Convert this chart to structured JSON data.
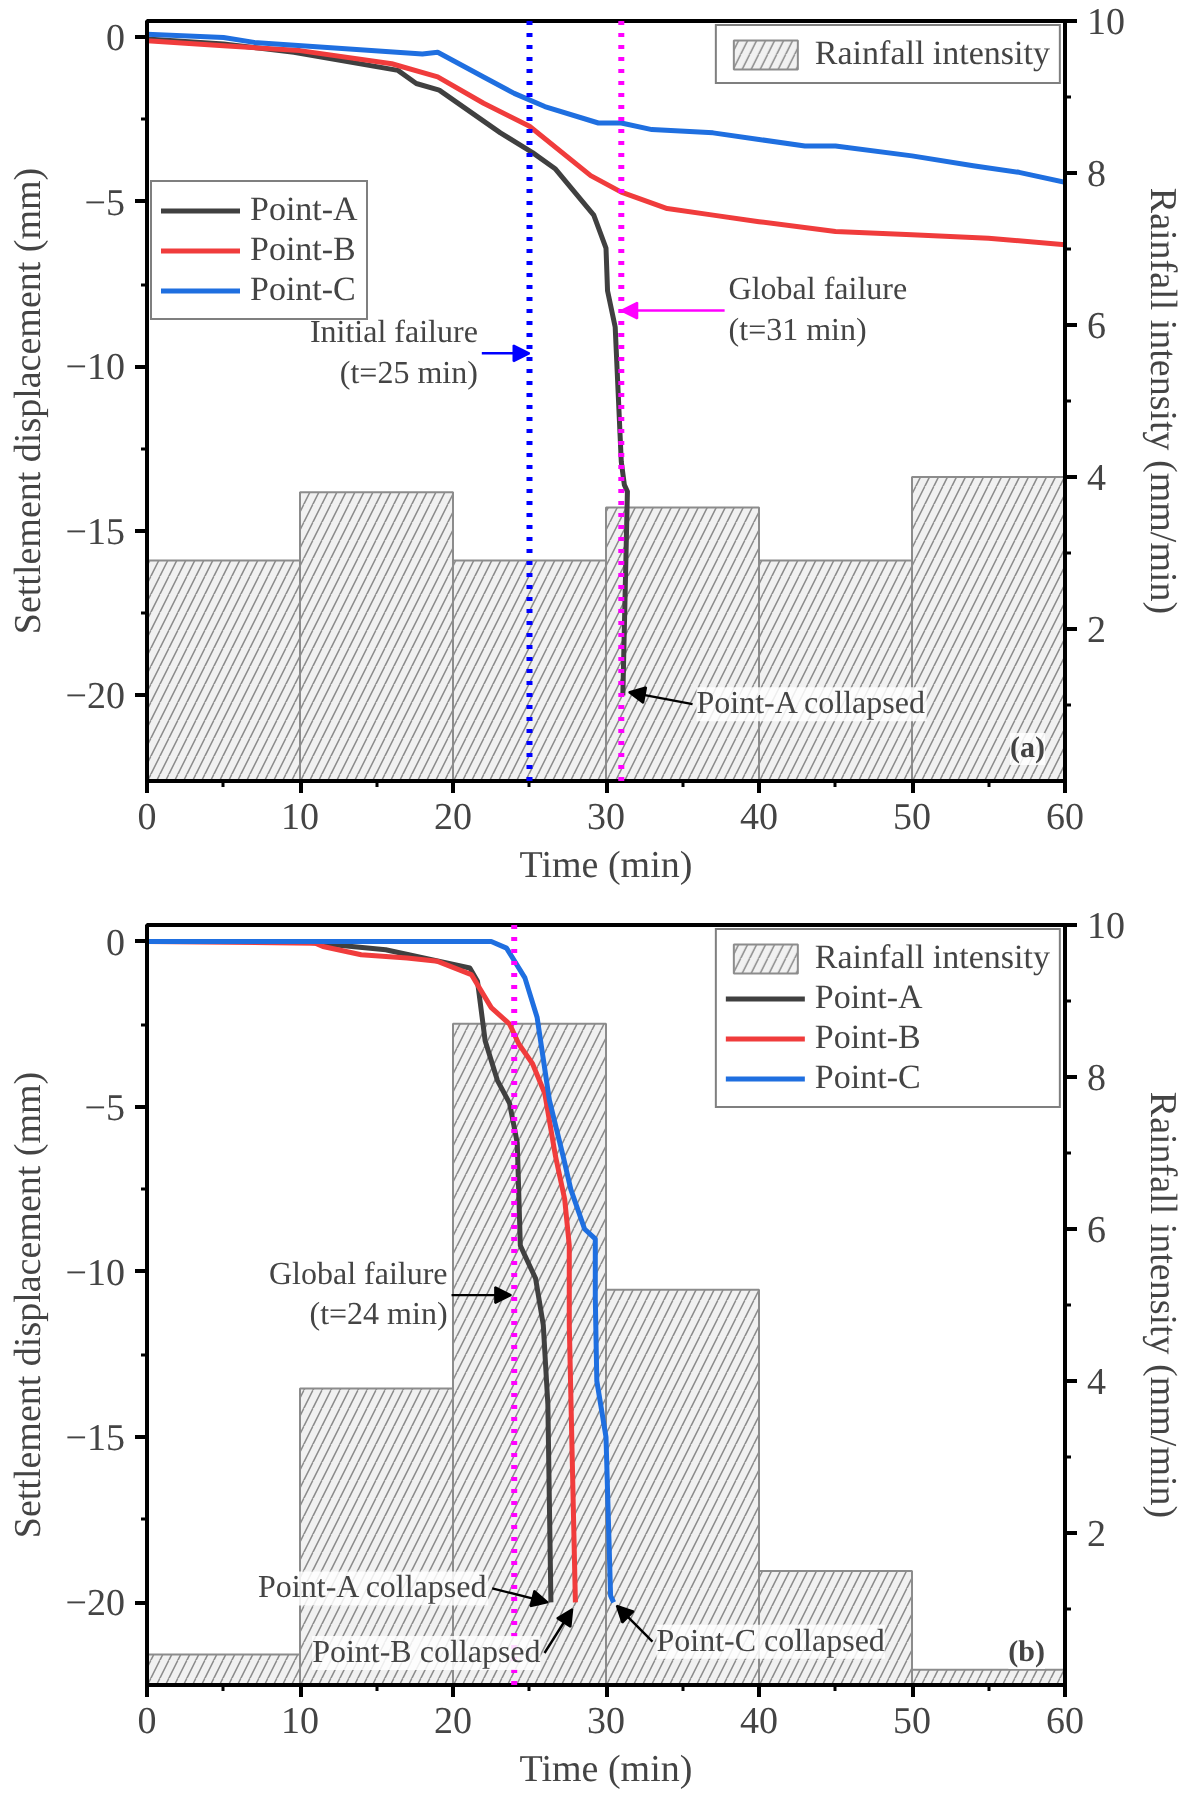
{
  "chart_data": [
    {
      "type": "line",
      "xlabel": "Time (min)",
      "ylabel": "Settlement displacement (mm)",
      "y2label": "Rainfall intensity (mm/min)",
      "xlim": [
        0,
        60
      ],
      "xticks": [
        0,
        10,
        20,
        30,
        40,
        50,
        60
      ],
      "ylim": [
        -22.6,
        0.5
      ],
      "yticks": [
        0,
        {
          "value": -5,
          "label": "−5"
        },
        {
          "value": -10,
          "label": "−10"
        },
        {
          "value": -15,
          "label": "−15"
        },
        {
          "value": -20,
          "label": "−20"
        }
      ],
      "y2lim": [
        0,
        10
      ],
      "y2ticks": [
        2,
        4,
        6,
        8,
        10
      ],
      "legend": "top left",
      "marker": "none",
      "line_style": "solid",
      "series": [
        {
          "name": "Rainfall intensity",
          "type": "bar",
          "axis": "y2",
          "color": "#8c8c8c",
          "x": [
            5,
            15,
            25,
            35,
            45,
            55
          ],
          "values": [
            2.9,
            3.8,
            2.9,
            3.6,
            2.9,
            4.0
          ]
        },
        {
          "name": "Point-A",
          "color": "#404040",
          "x": [
            0,
            5,
            9.6,
            16.4,
            17.6,
            19.1,
            23.1,
            25.2,
            26.7,
            29.2,
            30,
            30.1,
            30.6,
            31,
            31.2,
            31.4,
            31.1
          ],
          "values": [
            -0.05,
            -0.2,
            -0.45,
            -1.0,
            -1.4,
            -1.6,
            -2.9,
            -3.5,
            -4.0,
            -5.4,
            -6.4,
            -7.7,
            -8.8,
            -12.9,
            -13.6,
            -13.8,
            -20
          ]
        },
        {
          "name": "Point-B",
          "color": "#f03c3c",
          "x": [
            0,
            5,
            10,
            16,
            19,
            22,
            25,
            29,
            31,
            34,
            37,
            40,
            45,
            50,
            55,
            60
          ],
          "values": [
            -0.1,
            -0.25,
            -0.4,
            -0.8,
            -1.2,
            -2.0,
            -2.7,
            -4.2,
            -4.7,
            -5.2,
            -5.4,
            -5.6,
            -5.9,
            -6.0,
            -6.1,
            -6.3
          ]
        },
        {
          "name": "Point-C",
          "color": "#1f6fe0",
          "x": [
            0,
            5,
            7,
            18,
            19,
            20,
            22,
            24,
            26,
            29.5,
            31,
            33,
            37,
            40,
            43,
            45,
            50,
            54,
            57,
            60
          ],
          "values": [
            0.1,
            0,
            -0.15,
            -0.5,
            -0.45,
            -0.7,
            -1.2,
            -1.7,
            -2.1,
            -2.6,
            -2.6,
            -2.8,
            -2.9,
            -3.1,
            -3.3,
            -3.3,
            -3.6,
            -3.9,
            -4.1,
            -4.4
          ]
        }
      ],
      "ref_lines": [
        {
          "axis": "x",
          "value": 25,
          "color": "#0000ff",
          "line_style": "dotted"
        },
        {
          "axis": "x",
          "value": 31,
          "color": "#ff00ff",
          "line_style": "dotted"
        }
      ],
      "annotations": [
        {
          "text": "Initial failure\n(t=25 min)",
          "x": 25,
          "y": -9.6
        },
        {
          "text": "Global failure\n(t=31 min)",
          "x": 31,
          "y": -8.3
        },
        {
          "text": "Point-A collapsed",
          "x": 31.5,
          "y": -19.9
        },
        "(a)"
      ]
    },
    {
      "type": "line",
      "xlabel": "Time (min)",
      "ylabel": "Settlement displacement (mm)",
      "y2label": "Rainfall intensity (mm/min)",
      "xlim": [
        0,
        60
      ],
      "xticks": [
        0,
        10,
        20,
        30,
        40,
        50,
        60
      ],
      "ylim": [
        -22.5,
        0.5
      ],
      "yticks": [
        0,
        {
          "value": -5,
          "label": "−5"
        },
        {
          "value": -10,
          "label": "−10"
        },
        {
          "value": -15,
          "label": "−15"
        },
        {
          "value": -20,
          "label": "−20"
        }
      ],
      "y2lim": [
        0,
        10
      ],
      "y2ticks": [
        2,
        4,
        6,
        8,
        10
      ],
      "legend": "top right",
      "marker": "none",
      "line_style": "solid",
      "series": [
        {
          "name": "Rainfall intensity",
          "type": "bar",
          "axis": "y2",
          "color": "#8c8c8c",
          "x": [
            5,
            15,
            25,
            35,
            45,
            55
          ],
          "values": [
            0.4,
            3.9,
            8.7,
            5.2,
            1.5,
            0.2
          ]
        },
        {
          "name": "Point-A",
          "color": "#404040",
          "x": [
            0,
            10,
            15.6,
            21.1,
            21.6,
            22.1,
            22.9,
            23.7,
            24.2,
            24.4,
            24.7,
            25.4,
            25.9,
            26.2,
            26.4
          ],
          "values": [
            0,
            0,
            -0.25,
            -0.8,
            -1.2,
            -3.0,
            -4.2,
            -4.9,
            -6.1,
            -9.2,
            -9.5,
            -10.2,
            -11.6,
            -14.0,
            -20
          ]
        },
        {
          "name": "Point-B",
          "color": "#f03c3c",
          "x": [
            0,
            11,
            11.5,
            14,
            17,
            19,
            21.2,
            22.5,
            23.7,
            24.3,
            25.2,
            26,
            26.7,
            27.3,
            27.6,
            27.6,
            28
          ],
          "values": [
            0,
            -0.05,
            -0.15,
            -0.4,
            -0.5,
            -0.6,
            -1.0,
            -2.0,
            -2.5,
            -3.1,
            -3.7,
            -4.6,
            -6.5,
            -7.8,
            -9.2,
            -11.6,
            -20
          ]
        },
        {
          "name": "Point-C",
          "color": "#1f6fe0",
          "x": [
            0,
            22.5,
            23.5,
            24.7,
            25.5,
            26.3,
            27.2,
            27.7,
            28.6,
            29.3,
            29.3,
            29.4,
            30,
            30.3,
            30.5
          ],
          "values": [
            0,
            0,
            -0.2,
            -1.1,
            -2.3,
            -4.8,
            -6.5,
            -7.5,
            -8.7,
            -9.0,
            -10.8,
            -13.3,
            -15,
            -19.8,
            -20
          ]
        }
      ],
      "ref_lines": [
        {
          "axis": "x",
          "value": 24,
          "color": "#ff00ff",
          "line_style": "dotted"
        }
      ],
      "annotations": [
        {
          "text": "Global failure\n(t=24 min)",
          "x": 23.8,
          "y": -10.7
        },
        {
          "text": "Point-A collapsed",
          "x": 26.2,
          "y": -20
        },
        {
          "text": "Point-B collapsed",
          "x": 27.8,
          "y": -20.2
        },
        {
          "text": "Point-C collapsed",
          "x": 30.7,
          "y": -20.1
        },
        "(b)"
      ]
    }
  ]
}
